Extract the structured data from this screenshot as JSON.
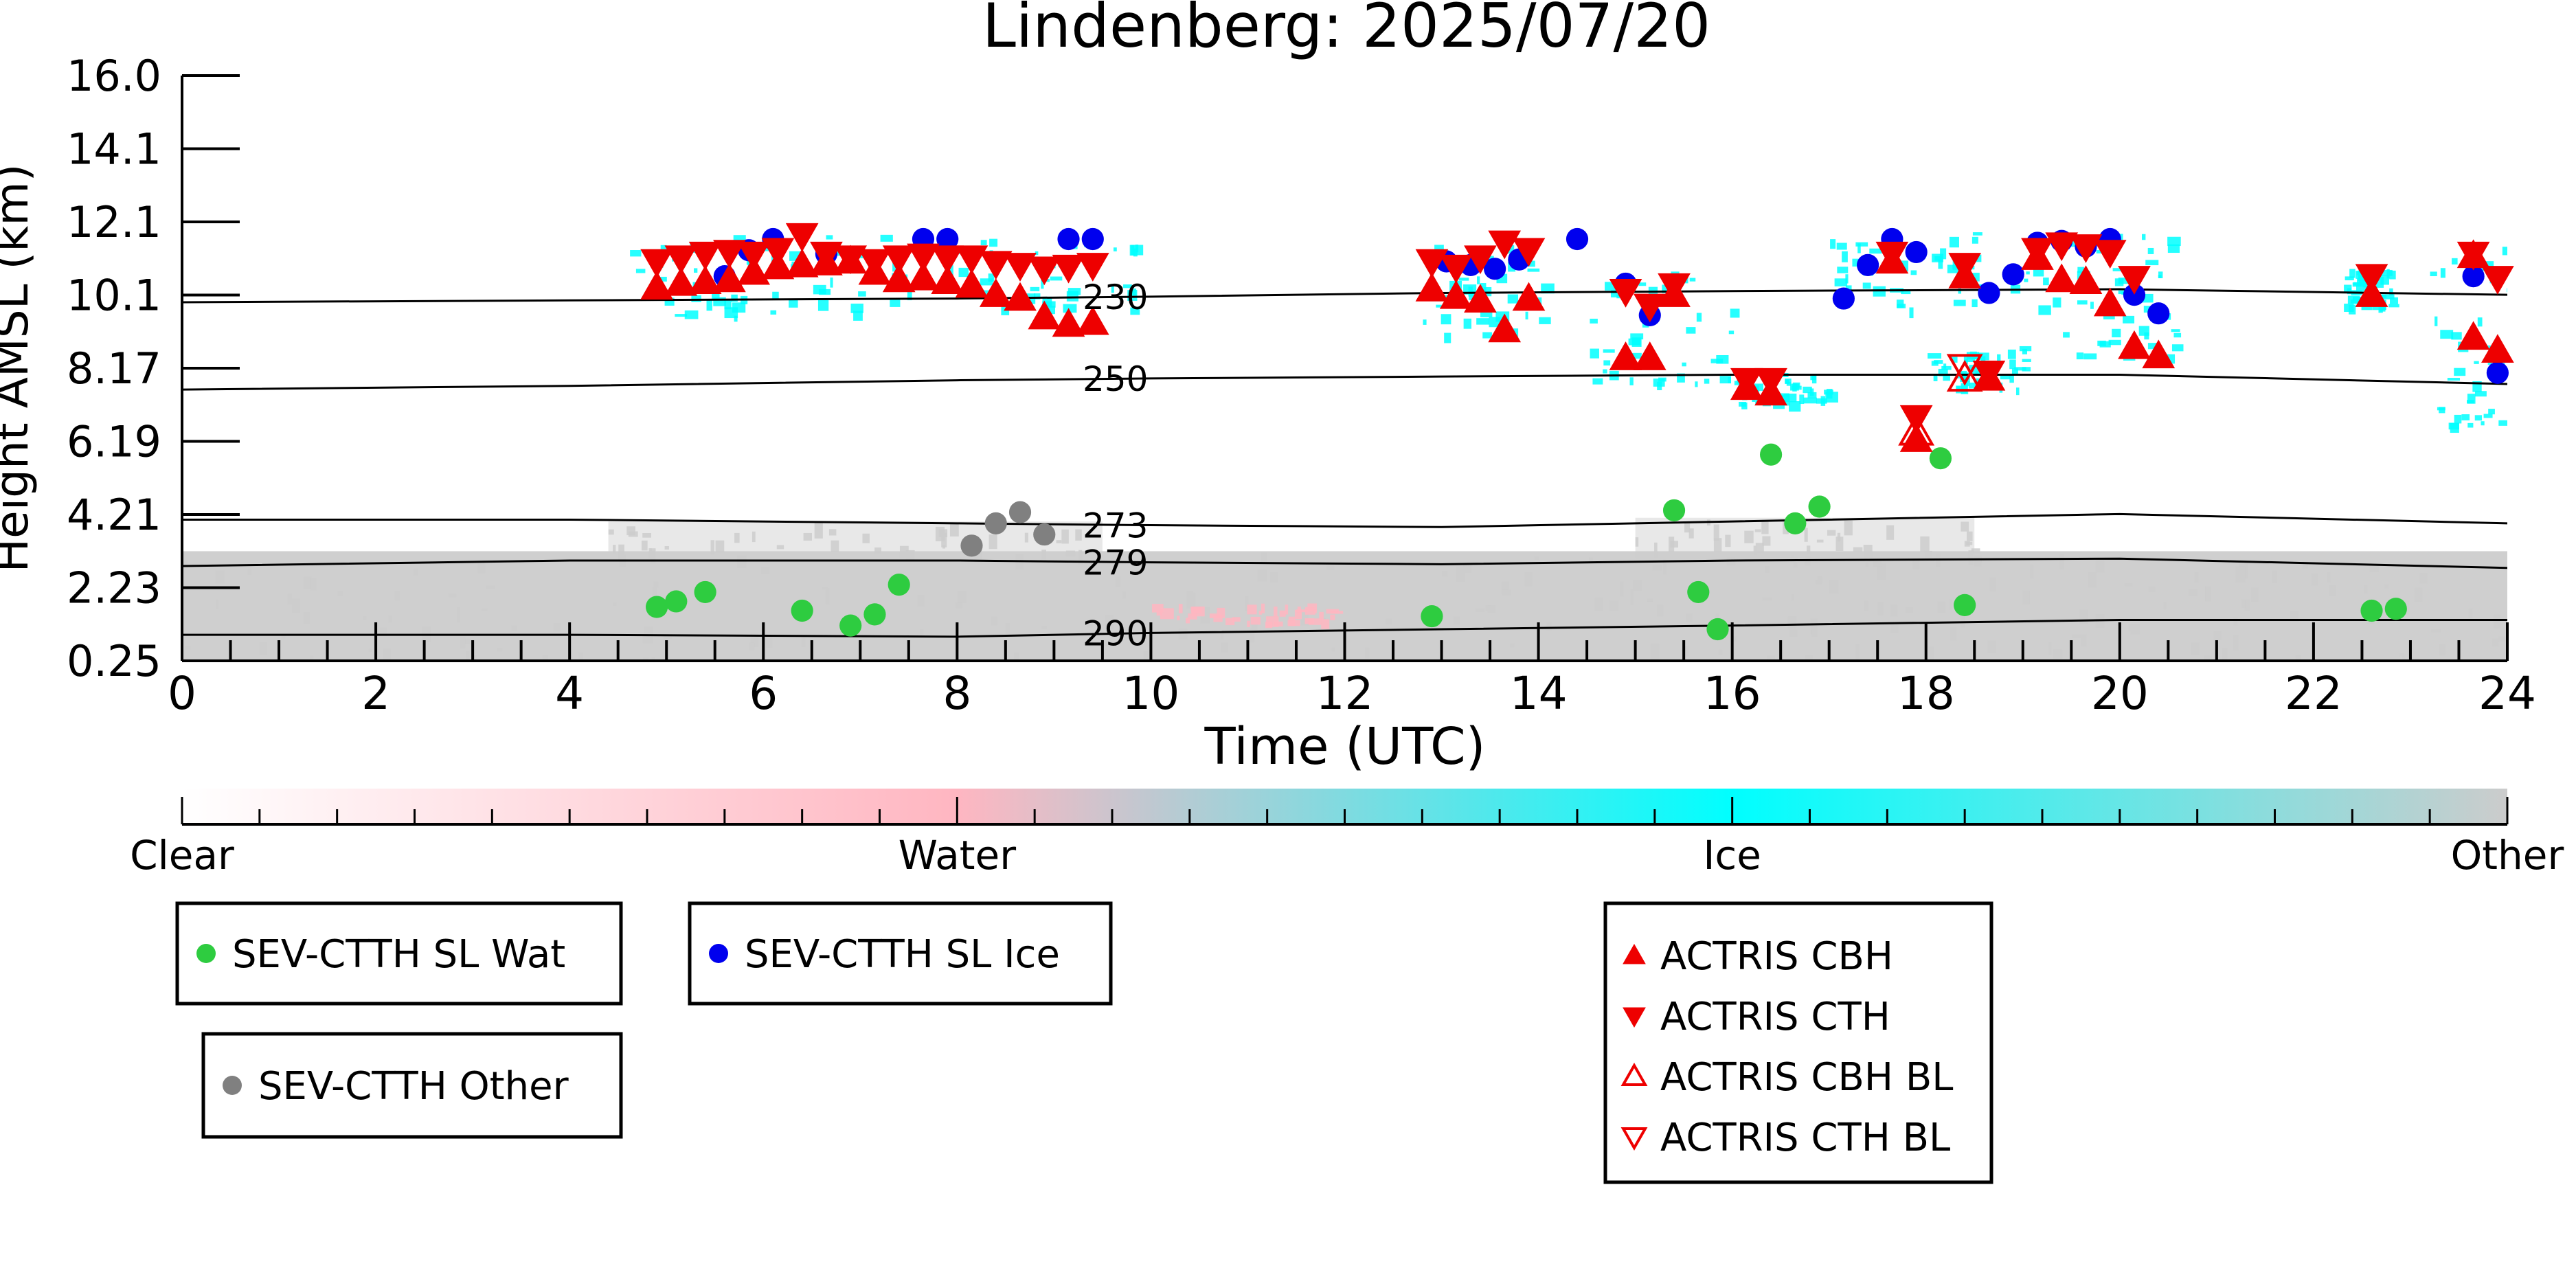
{
  "chart_data": {
    "type": "scatter",
    "title": "Lindenberg: 2025/07/20",
    "xlabel": "Time (UTC)",
    "ylabel": "Height AMSL (km)",
    "xlim": [
      0,
      24
    ],
    "ylim": [
      0.25,
      16.0
    ],
    "xticks": [
      0,
      2,
      4,
      6,
      8,
      10,
      12,
      14,
      16,
      18,
      20,
      22,
      24
    ],
    "yticks": [
      "0.25",
      "2.23",
      "4.21",
      "6.19",
      "8.17",
      "10.1",
      "12.1",
      "14.1",
      "16.0"
    ],
    "grid": false,
    "colorbar": {
      "labels": [
        "Clear",
        "Water",
        "Ice",
        "Other"
      ],
      "colors": [
        "#ffffff",
        "#ffb6c1",
        "#00ffff",
        "#cccccc"
      ]
    },
    "isotherms": [
      {
        "label": "230",
        "x": [
          0,
          4,
          8,
          10,
          13,
          16,
          20,
          24
        ],
        "y": [
          9.9,
          9.95,
          10.0,
          10.05,
          10.15,
          10.2,
          10.25,
          10.1
        ]
      },
      {
        "label": "250",
        "x": [
          0,
          4,
          8,
          10,
          13,
          16,
          20,
          24
        ],
        "y": [
          7.55,
          7.65,
          7.8,
          7.85,
          7.9,
          7.95,
          7.95,
          7.7
        ]
      },
      {
        "label": "273",
        "x": [
          0,
          4,
          8,
          10,
          13,
          16,
          20,
          24
        ],
        "y": [
          4.05,
          4.05,
          3.95,
          3.9,
          3.85,
          4.0,
          4.2,
          3.95
        ]
      },
      {
        "label": "279",
        "x": [
          0,
          4,
          8,
          10,
          13,
          16,
          20,
          24
        ],
        "y": [
          2.8,
          2.95,
          2.95,
          2.9,
          2.85,
          2.95,
          3.0,
          2.75
        ]
      },
      {
        "label": "290",
        "x": [
          0,
          4,
          8,
          10,
          13,
          16,
          20,
          24
        ],
        "y": [
          0.95,
          0.95,
          0.9,
          1.0,
          1.1,
          1.2,
          1.35,
          1.35
        ]
      }
    ],
    "series": [
      {
        "name": "SEV-CTTH SL Wat",
        "marker": "circle",
        "color": "#2ecc40",
        "points": [
          [
            4.9,
            1.7
          ],
          [
            5.1,
            1.85
          ],
          [
            5.4,
            2.1
          ],
          [
            6.4,
            1.6
          ],
          [
            6.9,
            1.2
          ],
          [
            7.15,
            1.5
          ],
          [
            7.4,
            2.3
          ],
          [
            12.9,
            1.45
          ],
          [
            15.4,
            4.3
          ],
          [
            15.65,
            2.1
          ],
          [
            15.85,
            1.1
          ],
          [
            16.4,
            5.8
          ],
          [
            16.65,
            3.95
          ],
          [
            16.9,
            4.4
          ],
          [
            18.15,
            5.7
          ],
          [
            18.4,
            1.75
          ],
          [
            22.6,
            1.6
          ],
          [
            22.85,
            1.65
          ]
        ]
      },
      {
        "name": "SEV-CTTH SL Ice",
        "marker": "circle",
        "color": "#0000ee",
        "points": [
          [
            5.6,
            10.6
          ],
          [
            5.85,
            11.3
          ],
          [
            6.1,
            11.6
          ],
          [
            6.65,
            11.2
          ],
          [
            7.65,
            11.6
          ],
          [
            7.9,
            11.6
          ],
          [
            9.15,
            11.6
          ],
          [
            9.4,
            11.6
          ],
          [
            13.05,
            11.0
          ],
          [
            13.3,
            10.9
          ],
          [
            13.55,
            10.8
          ],
          [
            13.8,
            11.05
          ],
          [
            14.4,
            11.6
          ],
          [
            14.9,
            10.4
          ],
          [
            15.15,
            9.55
          ],
          [
            17.15,
            10.0
          ],
          [
            17.4,
            10.9
          ],
          [
            17.65,
            11.6
          ],
          [
            17.9,
            11.25
          ],
          [
            18.65,
            10.15
          ],
          [
            18.9,
            10.65
          ],
          [
            19.15,
            11.5
          ],
          [
            19.4,
            11.55
          ],
          [
            19.65,
            11.4
          ],
          [
            19.9,
            11.6
          ],
          [
            20.15,
            10.1
          ],
          [
            20.4,
            9.6
          ],
          [
            23.65,
            10.6
          ],
          [
            23.9,
            8.0
          ]
        ]
      },
      {
        "name": "SEV-CTTH Other",
        "marker": "circle",
        "color": "#808080",
        "points": [
          [
            8.15,
            3.35
          ],
          [
            8.4,
            3.95
          ],
          [
            8.65,
            4.25
          ],
          [
            8.9,
            3.65
          ]
        ]
      },
      {
        "name": "ACTRIS CBH",
        "marker": "triangle-up",
        "color": "#ee0000",
        "points": [
          [
            4.9,
            10.3
          ],
          [
            5.15,
            10.4
          ],
          [
            5.4,
            10.45
          ],
          [
            5.65,
            10.5
          ],
          [
            5.9,
            10.7
          ],
          [
            6.15,
            10.85
          ],
          [
            6.4,
            10.9
          ],
          [
            6.65,
            10.95
          ],
          [
            6.9,
            11.0
          ],
          [
            7.15,
            10.7
          ],
          [
            7.4,
            10.5
          ],
          [
            7.65,
            10.55
          ],
          [
            7.9,
            10.45
          ],
          [
            8.15,
            10.35
          ],
          [
            8.4,
            10.1
          ],
          [
            8.65,
            10.0
          ],
          [
            8.9,
            9.5
          ],
          [
            9.15,
            9.3
          ],
          [
            9.4,
            9.35
          ],
          [
            12.9,
            10.25
          ],
          [
            13.15,
            10.05
          ],
          [
            13.4,
            9.95
          ],
          [
            13.65,
            9.15
          ],
          [
            13.9,
            10.0
          ],
          [
            14.9,
            8.4
          ],
          [
            15.15,
            8.4
          ],
          [
            15.4,
            10.1
          ],
          [
            16.15,
            7.6
          ],
          [
            16.4,
            7.45
          ],
          [
            17.65,
            11.0
          ],
          [
            17.9,
            6.2
          ],
          [
            18.4,
            10.6
          ],
          [
            18.65,
            7.85
          ],
          [
            19.15,
            11.1
          ],
          [
            19.4,
            10.5
          ],
          [
            19.65,
            10.45
          ],
          [
            19.9,
            9.85
          ],
          [
            20.15,
            8.7
          ],
          [
            20.4,
            8.45
          ],
          [
            22.6,
            10.1
          ],
          [
            23.65,
            11.15
          ],
          [
            23.65,
            8.95
          ],
          [
            23.9,
            8.6
          ]
        ]
      },
      {
        "name": "ACTRIS CTH",
        "marker": "triangle-down",
        "color": "#ee0000",
        "points": [
          [
            4.9,
            11.0
          ],
          [
            5.15,
            11.1
          ],
          [
            5.4,
            11.2
          ],
          [
            5.65,
            11.25
          ],
          [
            5.9,
            11.2
          ],
          [
            6.15,
            11.3
          ],
          [
            6.4,
            11.7
          ],
          [
            6.65,
            11.2
          ],
          [
            6.9,
            11.1
          ],
          [
            7.15,
            11.0
          ],
          [
            7.4,
            11.1
          ],
          [
            7.65,
            11.15
          ],
          [
            7.9,
            11.1
          ],
          [
            8.15,
            11.1
          ],
          [
            8.4,
            10.95
          ],
          [
            8.65,
            10.9
          ],
          [
            8.9,
            10.8
          ],
          [
            9.15,
            10.85
          ],
          [
            9.4,
            10.9
          ],
          [
            12.9,
            11.0
          ],
          [
            13.15,
            10.85
          ],
          [
            13.4,
            11.1
          ],
          [
            13.65,
            11.5
          ],
          [
            13.9,
            11.3
          ],
          [
            14.9,
            10.2
          ],
          [
            15.15,
            9.8
          ],
          [
            15.4,
            10.35
          ],
          [
            16.15,
            7.8
          ],
          [
            16.4,
            7.8
          ],
          [
            17.65,
            11.2
          ],
          [
            17.9,
            6.8
          ],
          [
            18.4,
            10.9
          ],
          [
            18.65,
            8.0
          ],
          [
            19.15,
            11.3
          ],
          [
            19.4,
            11.45
          ],
          [
            19.65,
            11.4
          ],
          [
            19.9,
            11.25
          ],
          [
            20.15,
            10.55
          ],
          [
            22.6,
            10.6
          ],
          [
            23.65,
            11.2
          ],
          [
            23.9,
            10.55
          ]
        ]
      },
      {
        "name": "ACTRIS CBH BL",
        "marker": "triangle-up-open",
        "color": "#ee0000",
        "points": [
          [
            18.4,
            7.85
          ],
          [
            17.9,
            6.4
          ]
        ]
      },
      {
        "name": "ACTRIS CTH BL",
        "marker": "triangle-down-open",
        "color": "#ee0000",
        "points": [
          [
            18.4,
            8.15
          ]
        ]
      }
    ],
    "legends": [
      {
        "entries": [
          "SEV-CTTH SL Wat"
        ]
      },
      {
        "entries": [
          "SEV-CTTH SL Ice"
        ]
      },
      {
        "entries": [
          "SEV-CTTH Other"
        ]
      },
      {
        "entries": [
          "ACTRIS CBH",
          "ACTRIS CTH",
          "ACTRIS CBH BL",
          "ACTRIS CTH BL"
        ]
      }
    ],
    "cloud_ranges": {
      "ice": [
        [
          4.5,
          9.9,
          9.5,
          11.8
        ],
        [
          12.8,
          14.1,
          9.0,
          11.6
        ],
        [
          14.5,
          16.0,
          7.6,
          10.8
        ],
        [
          16.0,
          17.0,
          7.2,
          8.0
        ],
        [
          17.0,
          18.6,
          9.5,
          11.8
        ],
        [
          18.0,
          19.0,
          7.6,
          8.6
        ],
        [
          18.8,
          20.6,
          8.5,
          11.8
        ],
        [
          22.3,
          22.8,
          9.8,
          10.8
        ],
        [
          23.2,
          24.0,
          6.5,
          11.5
        ]
      ],
      "other": [
        [
          0,
          24,
          0.25,
          3.2
        ],
        [
          4.4,
          9.5,
          3.2,
          4.0
        ],
        [
          15.0,
          18.5,
          3.0,
          4.1
        ]
      ],
      "water": [
        [
          10.0,
          12.0,
          1.3,
          1.8
        ]
      ]
    }
  }
}
